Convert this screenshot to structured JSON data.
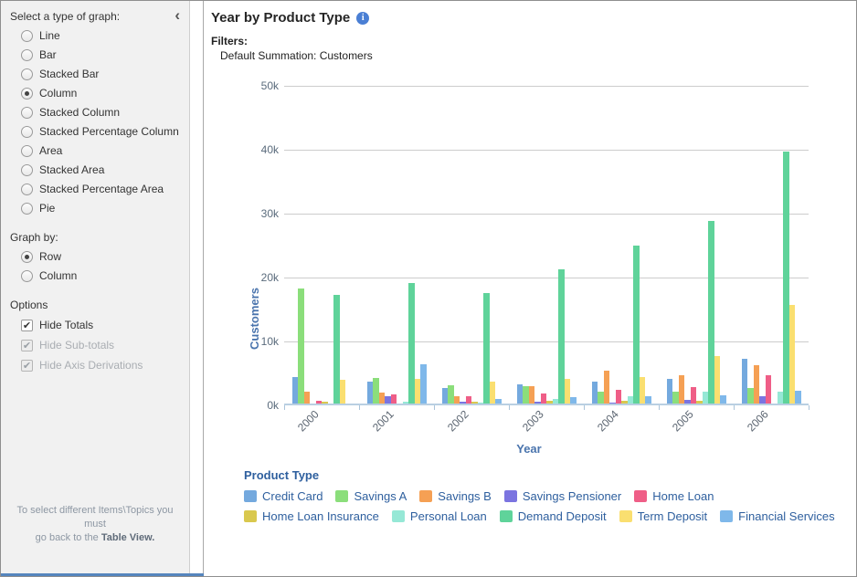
{
  "sidebar": {
    "graph_type_label": "Select a type of graph:",
    "collapse_icon": "‹",
    "graph_types": [
      {
        "label": "Line",
        "selected": false
      },
      {
        "label": "Bar",
        "selected": false
      },
      {
        "label": "Stacked Bar",
        "selected": false
      },
      {
        "label": "Column",
        "selected": true
      },
      {
        "label": "Stacked Column",
        "selected": false
      },
      {
        "label": "Stacked Percentage Column",
        "selected": false
      },
      {
        "label": "Area",
        "selected": false
      },
      {
        "label": "Stacked Area",
        "selected": false
      },
      {
        "label": "Stacked Percentage Area",
        "selected": false
      },
      {
        "label": "Pie",
        "selected": false
      }
    ],
    "graph_by_label": "Graph by:",
    "graph_by": [
      {
        "label": "Row",
        "selected": true
      },
      {
        "label": "Column",
        "selected": false
      }
    ],
    "options_label": "Options",
    "options": [
      {
        "label": "Hide Totals",
        "checked": true,
        "disabled": false
      },
      {
        "label": "Hide Sub-totals",
        "checked": true,
        "disabled": true
      },
      {
        "label": "Hide Axis Derivations",
        "checked": true,
        "disabled": true
      }
    ],
    "footer_line1": "To select different Items\\Topics you must",
    "footer_line2_prefix": "go back to the ",
    "footer_line2_bold": "Table View."
  },
  "main": {
    "title": "Year by Product Type",
    "info_icon": "i",
    "filters_label": "Filters:",
    "filters_value": "Default Summation: Customers"
  },
  "chart_data": {
    "type": "bar",
    "title": "Year by Product Type",
    "xlabel": "Year",
    "ylabel": "Customers",
    "ylim": [
      0,
      50000
    ],
    "ytick_step": 10000,
    "ytick_labels": [
      "0k",
      "10k",
      "20k",
      "30k",
      "40k",
      "50k"
    ],
    "grid": true,
    "legend_position": "bottom",
    "legend_title": "Product Type",
    "categories": [
      "2000",
      "2001",
      "2002",
      "2003",
      "2004",
      "2005",
      "2006"
    ],
    "series": [
      {
        "name": "Credit Card",
        "color": "#74A9DE",
        "values": [
          4200,
          3500,
          2500,
          3000,
          3400,
          3900,
          7000
        ]
      },
      {
        "name": "Savings A",
        "color": "#8BDE7B",
        "values": [
          18000,
          4000,
          2900,
          2700,
          1900,
          1800,
          2500
        ]
      },
      {
        "name": "Savings B",
        "color": "#F5A054",
        "values": [
          1900,
          1700,
          1200,
          2700,
          5100,
          4400,
          6000
        ]
      },
      {
        "name": "Savings Pensioner",
        "color": "#7B74E0",
        "values": [
          0,
          1200,
          300,
          300,
          200,
          550,
          1200
        ]
      },
      {
        "name": "Home Loan",
        "color": "#EF5E87",
        "values": [
          500,
          1500,
          1100,
          1600,
          2100,
          2600,
          4400
        ]
      },
      {
        "name": "Home Loan Insurance",
        "color": "#D9C84E",
        "values": [
          300,
          0,
          300,
          400,
          500,
          400,
          0
        ]
      },
      {
        "name": "Personal Loan",
        "color": "#96E8D6",
        "values": [
          0,
          300,
          200,
          700,
          1200,
          1800,
          1800
        ]
      },
      {
        "name": "Demand Deposit",
        "color": "#5FD39A",
        "values": [
          17000,
          18900,
          17300,
          21000,
          24700,
          28600,
          39400
        ]
      },
      {
        "name": "Term Deposit",
        "color": "#FADF70",
        "values": [
          3700,
          3900,
          3400,
          3900,
          4200,
          7500,
          15400
        ]
      },
      {
        "name": "Financial Services",
        "color": "#7FB8EA",
        "values": [
          0,
          6100,
          700,
          1000,
          1100,
          1300,
          2000
        ]
      }
    ]
  }
}
